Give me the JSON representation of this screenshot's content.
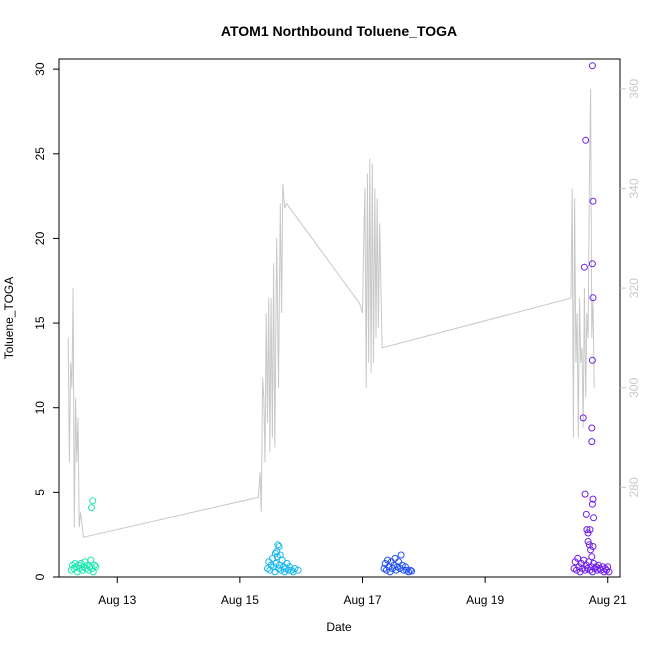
{
  "chart_data": {
    "type": "scatter",
    "title": "ATOM1 Northbound Toluene_TOGA",
    "xlabel": "Date",
    "ylabel": "Toluene_TOGA",
    "x_tick_labels": [
      "Aug 13",
      "Aug 15",
      "Aug 17",
      "Aug 19",
      "Aug 21"
    ],
    "x_tick_days": [
      13,
      15,
      17,
      19,
      21
    ],
    "xlim": [
      12.05,
      21.2
    ],
    "y_ticks": [
      0,
      5,
      10,
      15,
      20,
      25,
      30
    ],
    "ylim": [
      0,
      30.6
    ],
    "y_right_ticks": [
      280,
      300,
      320,
      340,
      360
    ],
    "y_right_lim": [
      262,
      366
    ],
    "line_color": "#c8c8c8",
    "right_axis_color": "#c8c8c8",
    "series": [
      {
        "color": "#1ee8b0",
        "points": [
          [
            12.25,
            0.4
          ],
          [
            12.27,
            0.7
          ],
          [
            12.29,
            0.5
          ],
          [
            12.31,
            0.8
          ],
          [
            12.33,
            0.6
          ],
          [
            12.35,
            0.3
          ],
          [
            12.37,
            0.7
          ],
          [
            12.39,
            0.5
          ],
          [
            12.41,
            0.8
          ],
          [
            12.43,
            0.4
          ],
          [
            12.45,
            0.6
          ],
          [
            12.47,
            0.9
          ],
          [
            12.49,
            0.5
          ],
          [
            12.51,
            0.7
          ],
          [
            12.53,
            0.4
          ],
          [
            12.55,
            0.6
          ],
          [
            12.57,
            1.0
          ],
          [
            12.59,
            0.5
          ],
          [
            12.61,
            0.3
          ],
          [
            12.63,
            0.7
          ],
          [
            12.65,
            0.6
          ],
          [
            12.58,
            4.1
          ],
          [
            12.6,
            4.5
          ]
        ]
      },
      {
        "color": "#18b8f0",
        "points": [
          [
            15.45,
            0.5
          ],
          [
            15.47,
            0.9
          ],
          [
            15.49,
            0.4
          ],
          [
            15.51,
            0.7
          ],
          [
            15.53,
            1.1
          ],
          [
            15.55,
            0.6
          ],
          [
            15.57,
            0.3
          ],
          [
            15.59,
            0.8
          ],
          [
            15.61,
            1.2
          ],
          [
            15.63,
            0.5
          ],
          [
            15.65,
            0.7
          ],
          [
            15.67,
            0.4
          ],
          [
            15.69,
            1.0
          ],
          [
            15.71,
            0.6
          ],
          [
            15.73,
            0.3
          ],
          [
            15.75,
            0.5
          ],
          [
            15.77,
            0.8
          ],
          [
            15.79,
            0.4
          ],
          [
            15.81,
            0.6
          ],
          [
            15.84,
            0.4
          ],
          [
            15.87,
            0.3
          ],
          [
            15.9,
            0.5
          ],
          [
            15.95,
            0.4
          ],
          [
            15.6,
            1.5
          ],
          [
            15.62,
            1.9
          ],
          [
            15.64,
            1.8
          ],
          [
            15.66,
            1.3
          ],
          [
            15.58,
            1.4
          ]
        ]
      },
      {
        "color": "#2050f0",
        "points": [
          [
            17.35,
            0.5
          ],
          [
            17.37,
            0.8
          ],
          [
            17.39,
            0.4
          ],
          [
            17.41,
            1.0
          ],
          [
            17.43,
            0.6
          ],
          [
            17.45,
            0.3
          ],
          [
            17.47,
            0.9
          ],
          [
            17.49,
            0.5
          ],
          [
            17.51,
            0.7
          ],
          [
            17.53,
            1.1
          ],
          [
            17.55,
            0.4
          ],
          [
            17.57,
            0.6
          ],
          [
            17.59,
            0.9
          ],
          [
            17.61,
            0.5
          ],
          [
            17.63,
            1.3
          ],
          [
            17.65,
            0.7
          ],
          [
            17.67,
            0.4
          ],
          [
            17.7,
            0.6
          ],
          [
            17.72,
            0.4
          ],
          [
            17.75,
            0.3
          ],
          [
            17.78,
            0.4
          ],
          [
            17.8,
            0.35
          ]
        ]
      },
      {
        "color": "#7020e8",
        "points": [
          [
            20.45,
            0.5
          ],
          [
            20.47,
            0.9
          ],
          [
            20.49,
            0.4
          ],
          [
            20.51,
            1.1
          ],
          [
            20.53,
            0.6
          ],
          [
            20.55,
            0.3
          ],
          [
            20.57,
            0.8
          ],
          [
            20.59,
            0.5
          ],
          [
            20.61,
            1.0
          ],
          [
            20.63,
            0.4
          ],
          [
            20.65,
            0.7
          ],
          [
            20.67,
            0.5
          ],
          [
            20.69,
            0.9
          ],
          [
            20.71,
            0.4
          ],
          [
            20.73,
            0.6
          ],
          [
            20.75,
            0.3
          ],
          [
            20.77,
            0.8
          ],
          [
            20.79,
            0.5
          ],
          [
            20.81,
            0.6
          ],
          [
            20.83,
            0.4
          ],
          [
            20.85,
            0.7
          ],
          [
            20.87,
            0.5
          ],
          [
            20.89,
            0.4
          ],
          [
            20.92,
            0.6
          ],
          [
            20.94,
            0.3
          ],
          [
            20.96,
            0.5
          ],
          [
            20.98,
            0.4
          ],
          [
            21.0,
            0.6
          ],
          [
            21.02,
            0.3
          ],
          [
            20.6,
            9.4
          ],
          [
            20.63,
            4.9
          ],
          [
            20.65,
            3.7
          ],
          [
            20.66,
            2.8
          ],
          [
            20.68,
            2.1
          ],
          [
            20.7,
            1.9
          ],
          [
            20.72,
            1.6
          ],
          [
            20.74,
            1.2
          ],
          [
            20.76,
            1.8
          ],
          [
            20.62,
            18.3
          ],
          [
            20.64,
            25.8
          ],
          [
            20.75,
            30.2
          ],
          [
            20.76,
            22.2
          ],
          [
            20.75,
            18.5
          ],
          [
            20.76,
            16.5
          ],
          [
            20.75,
            12.8
          ],
          [
            20.74,
            8.8
          ],
          [
            20.74,
            8.0
          ],
          [
            20.76,
            4.6
          ],
          [
            20.75,
            4.3
          ],
          [
            20.77,
            3.5
          ],
          [
            20.68,
            2.6
          ],
          [
            20.71,
            2.8
          ]
        ]
      }
    ],
    "right_line": [
      [
        12.2,
        310
      ],
      [
        12.22,
        285
      ],
      [
        12.24,
        305
      ],
      [
        12.26,
        300
      ],
      [
        12.28,
        320
      ],
      [
        12.3,
        272
      ],
      [
        12.32,
        298
      ],
      [
        12.34,
        285
      ],
      [
        12.36,
        294
      ],
      [
        12.38,
        272
      ],
      [
        12.4,
        275
      ],
      [
        12.45,
        270
      ],
      [
        15.3,
        278
      ],
      [
        15.33,
        283
      ],
      [
        15.35,
        275
      ],
      [
        15.37,
        302
      ],
      [
        15.39,
        298
      ],
      [
        15.41,
        285
      ],
      [
        15.43,
        315
      ],
      [
        15.45,
        293
      ],
      [
        15.47,
        318
      ],
      [
        15.49,
        287
      ],
      [
        15.51,
        318
      ],
      [
        15.53,
        290
      ],
      [
        15.55,
        325
      ],
      [
        15.57,
        288
      ],
      [
        15.6,
        330
      ],
      [
        15.63,
        300
      ],
      [
        15.66,
        337
      ],
      [
        15.68,
        315
      ],
      [
        15.7,
        341
      ],
      [
        15.73,
        336
      ],
      [
        15.76,
        337
      ],
      [
        16.95,
        317
      ],
      [
        17.0,
        315
      ],
      [
        17.02,
        329
      ],
      [
        17.04,
        340
      ],
      [
        17.06,
        300
      ],
      [
        17.08,
        343
      ],
      [
        17.1,
        305
      ],
      [
        17.12,
        346
      ],
      [
        17.14,
        303
      ],
      [
        17.16,
        345
      ],
      [
        17.18,
        305
      ],
      [
        17.2,
        340
      ],
      [
        17.22,
        310
      ],
      [
        17.24,
        338
      ],
      [
        17.26,
        312
      ],
      [
        17.28,
        333
      ],
      [
        17.32,
        308
      ],
      [
        20.4,
        318
      ],
      [
        20.42,
        340
      ],
      [
        20.44,
        290
      ],
      [
        20.46,
        338
      ],
      [
        20.48,
        305
      ],
      [
        20.5,
        315
      ],
      [
        20.52,
        290
      ],
      [
        20.54,
        318
      ],
      [
        20.56,
        305
      ],
      [
        20.58,
        308
      ],
      [
        20.6,
        292
      ],
      [
        20.62,
        320
      ],
      [
        20.64,
        298
      ],
      [
        20.66,
        315
      ],
      [
        20.68,
        310
      ],
      [
        20.7,
        340
      ],
      [
        20.72,
        360
      ],
      [
        20.74,
        310
      ],
      [
        20.76,
        318
      ],
      [
        20.78,
        300
      ]
    ]
  }
}
